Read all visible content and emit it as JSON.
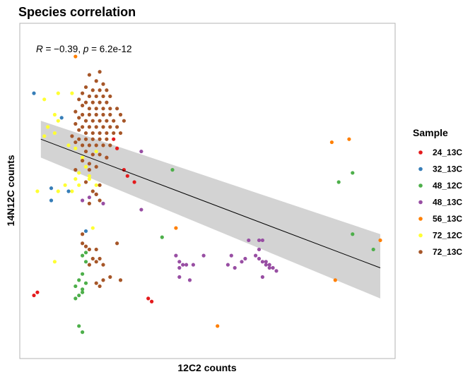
{
  "chart_data": {
    "type": "scatter",
    "title": "Species correlation",
    "xlabel": "12C2 counts",
    "ylabel": "14N12C counts",
    "annotation": {
      "r_label": "R",
      "r_value": "−0.39",
      "p_label": "p",
      "p_value": "6.2e-12"
    },
    "legend": {
      "title": "Sample",
      "position": "right",
      "entries": [
        {
          "name": "24_13C",
          "color": "#e41a1c"
        },
        {
          "name": "32_13C",
          "color": "#377eb8"
        },
        {
          "name": "48_12C",
          "color": "#4daf4a"
        },
        {
          "name": "48_13C",
          "color": "#984ea3"
        },
        {
          "name": "56_13C",
          "color": "#ff7f00"
        },
        {
          "name": "72_12C",
          "color": "#ffff33"
        },
        {
          "name": "72_13C",
          "color": "#a65628"
        }
      ]
    },
    "grid": false,
    "axis_ticks_shown": false,
    "xlim": [
      0,
      100
    ],
    "ylim": [
      0,
      100
    ],
    "trend": {
      "line_color": "#000000",
      "ribbon_color": "#d3d3d3",
      "start": {
        "x": 2,
        "y": 67
      },
      "end": {
        "x": 100,
        "y": 25
      },
      "band_start": [
        61,
        73
      ],
      "band_end": [
        15,
        36
      ]
    },
    "series": [
      {
        "name": "24_13C",
        "color": "#e41a1c",
        "points": [
          [
            23,
            67
          ],
          [
            24,
            64
          ],
          [
            26,
            57
          ],
          [
            27,
            55
          ],
          [
            29,
            53
          ],
          [
            0,
            16
          ],
          [
            1,
            17
          ],
          [
            33,
            15
          ],
          [
            34,
            14
          ]
        ]
      },
      {
        "name": "32_13C",
        "color": "#377eb8",
        "points": [
          [
            0,
            82
          ],
          [
            8,
            74
          ],
          [
            5,
            51
          ],
          [
            10,
            50
          ],
          [
            5,
            47
          ],
          [
            15,
            37
          ]
        ]
      },
      {
        "name": "48_12C",
        "color": "#4daf4a",
        "points": [
          [
            40,
            57
          ],
          [
            88,
            53
          ],
          [
            92,
            56
          ],
          [
            37,
            35
          ],
          [
            92,
            36
          ],
          [
            98,
            31
          ],
          [
            15,
            30
          ],
          [
            14,
            29
          ],
          [
            15,
            27
          ],
          [
            14,
            23
          ],
          [
            13,
            21
          ],
          [
            15,
            20
          ],
          [
            12,
            19
          ],
          [
            14,
            18
          ],
          [
            13,
            16
          ],
          [
            12,
            15
          ],
          [
            14,
            17
          ],
          [
            13,
            6
          ],
          [
            14,
            4
          ]
        ]
      },
      {
        "name": "48_13C",
        "color": "#984ea3",
        "points": [
          [
            31,
            63
          ],
          [
            21,
            61
          ],
          [
            31,
            44
          ],
          [
            18,
            49
          ],
          [
            16,
            48
          ],
          [
            20,
            46
          ],
          [
            14,
            47
          ],
          [
            41,
            29
          ],
          [
            43,
            26
          ],
          [
            42,
            27
          ],
          [
            42,
            25
          ],
          [
            44,
            26
          ],
          [
            46,
            26
          ],
          [
            45,
            21
          ],
          [
            42,
            22
          ],
          [
            49,
            29
          ],
          [
            57,
            29
          ],
          [
            56,
            26
          ],
          [
            61,
            28
          ],
          [
            62,
            34
          ],
          [
            65,
            34
          ],
          [
            66,
            34
          ],
          [
            65,
            31
          ],
          [
            64,
            29
          ],
          [
            65,
            28
          ],
          [
            66,
            27
          ],
          [
            67,
            27
          ],
          [
            67,
            26
          ],
          [
            68,
            25
          ],
          [
            68,
            26
          ],
          [
            69,
            25
          ],
          [
            70,
            24
          ],
          [
            66,
            22
          ],
          [
            58,
            25
          ],
          [
            60,
            27
          ]
        ]
      },
      {
        "name": "56_13C",
        "color": "#ff7f00",
        "points": [
          [
            12,
            94
          ],
          [
            86,
            66
          ],
          [
            91,
            67
          ],
          [
            41,
            38
          ],
          [
            100,
            34
          ],
          [
            87,
            21
          ],
          [
            53,
            6
          ]
        ]
      },
      {
        "name": "72_12C",
        "color": "#ffff33",
        "points": [
          [
            7,
            82
          ],
          [
            11,
            82
          ],
          [
            3,
            80
          ],
          [
            6,
            75
          ],
          [
            7,
            73
          ],
          [
            4,
            71
          ],
          [
            3,
            68
          ],
          [
            6,
            69
          ],
          [
            10,
            65
          ],
          [
            12,
            64
          ],
          [
            18,
            63
          ],
          [
            14,
            61
          ],
          [
            15,
            58
          ],
          [
            13,
            56
          ],
          [
            16,
            55
          ],
          [
            12,
            54
          ],
          [
            9,
            52
          ],
          [
            7,
            50
          ],
          [
            1,
            50
          ],
          [
            11,
            50
          ],
          [
            13,
            52
          ],
          [
            18,
            52
          ],
          [
            16,
            54
          ],
          [
            17,
            38
          ],
          [
            6,
            27
          ]
        ]
      },
      {
        "name": "72_13C",
        "color": "#a65628",
        "points": [
          [
            16,
            88
          ],
          [
            19,
            89
          ],
          [
            18,
            86
          ],
          [
            20,
            85
          ],
          [
            15,
            84
          ],
          [
            17,
            83
          ],
          [
            19,
            83
          ],
          [
            21,
            83
          ],
          [
            14,
            82
          ],
          [
            16,
            81
          ],
          [
            18,
            81
          ],
          [
            20,
            81
          ],
          [
            22,
            81
          ],
          [
            13,
            80
          ],
          [
            15,
            79
          ],
          [
            17,
            79
          ],
          [
            19,
            79
          ],
          [
            21,
            79
          ],
          [
            14,
            78
          ],
          [
            16,
            77
          ],
          [
            18,
            77
          ],
          [
            20,
            77
          ],
          [
            22,
            77
          ],
          [
            24,
            77
          ],
          [
            12,
            76
          ],
          [
            14,
            75
          ],
          [
            16,
            75
          ],
          [
            18,
            75
          ],
          [
            20,
            75
          ],
          [
            22,
            75
          ],
          [
            25,
            75
          ],
          [
            13,
            74
          ],
          [
            15,
            73
          ],
          [
            17,
            73
          ],
          [
            19,
            73
          ],
          [
            21,
            73
          ],
          [
            23,
            73
          ],
          [
            26,
            73
          ],
          [
            12,
            72
          ],
          [
            14,
            71
          ],
          [
            16,
            71
          ],
          [
            18,
            71
          ],
          [
            20,
            71
          ],
          [
            22,
            71
          ],
          [
            24,
            71
          ],
          [
            13,
            70
          ],
          [
            15,
            69
          ],
          [
            17,
            69
          ],
          [
            19,
            69
          ],
          [
            21,
            69
          ],
          [
            23,
            69
          ],
          [
            25,
            69
          ],
          [
            11,
            68
          ],
          [
            13,
            67
          ],
          [
            15,
            67
          ],
          [
            17,
            67
          ],
          [
            19,
            67
          ],
          [
            21,
            67
          ],
          [
            12,
            66
          ],
          [
            14,
            65
          ],
          [
            16,
            65
          ],
          [
            18,
            65
          ],
          [
            20,
            65
          ],
          [
            22,
            65
          ],
          [
            15,
            63
          ],
          [
            17,
            62
          ],
          [
            19,
            62
          ],
          [
            21,
            61
          ],
          [
            14,
            60
          ],
          [
            16,
            59
          ],
          [
            18,
            58
          ],
          [
            12,
            57
          ],
          [
            16,
            57
          ],
          [
            15,
            53
          ],
          [
            19,
            52
          ],
          [
            17,
            50
          ],
          [
            18,
            49
          ],
          [
            19,
            47
          ],
          [
            16,
            46
          ],
          [
            14,
            36
          ],
          [
            14,
            33
          ],
          [
            15,
            32
          ],
          [
            16,
            31
          ],
          [
            18,
            31
          ],
          [
            17,
            28
          ],
          [
            19,
            28
          ],
          [
            18,
            27
          ],
          [
            24,
            33
          ],
          [
            16,
            26
          ],
          [
            20,
            26
          ],
          [
            22,
            22
          ],
          [
            25,
            21
          ],
          [
            20,
            21
          ],
          [
            18,
            20
          ],
          [
            19,
            19
          ]
        ]
      }
    ]
  }
}
